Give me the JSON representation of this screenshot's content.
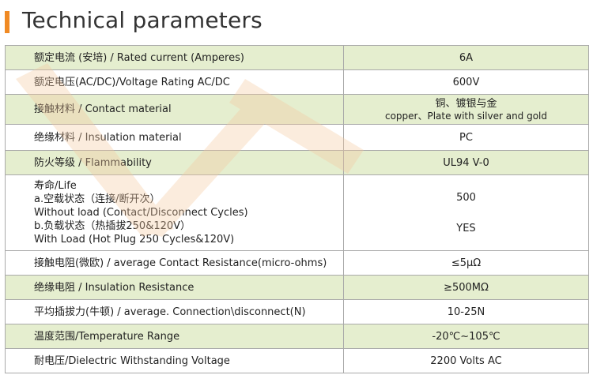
{
  "header": {
    "title": "Technical parameters"
  },
  "rows": [
    {
      "param": "额定电流 (安培) / Rated current (Amperes)",
      "value": "6A"
    },
    {
      "param": "额定电压(AC/DC)/Voltage Rating AC/DC",
      "value": "600V"
    },
    {
      "param": "接触材料 / Contact material",
      "value": "铜、镀银与金",
      "value_sub": "copper、Plate with silver and gold"
    },
    {
      "param": "绝缘材料 / Insulation material",
      "value": "PC"
    },
    {
      "param": "防火等级 / Flammability",
      "value": "UL94 V-0"
    },
    {
      "param_lines": [
        "寿命/Life",
        "a.空载状态（连接/断开次）",
        "Without  load (Contact/Disconnect Cycles)",
        "b.负载状态（热插拔250&120V）",
        "With Load (Hot Plug 250 Cycles&120V)"
      ],
      "value_a": "500",
      "value_b": "YES"
    },
    {
      "param": "接触电阻(微欧) / average Contact Resistance(micro-ohms)",
      "value": "≤5μΩ"
    },
    {
      "param": "绝缘电阻 / Insulation Resistance",
      "value": "≥500MΩ"
    },
    {
      "param": "平均插拔力(牛顿) / average. Connection\\disconnect(N)",
      "value": "10-25N"
    },
    {
      "param": "温度范围/Temperature Range",
      "value": "-20℃~105℃"
    },
    {
      "param": "耐电压/Dielectric Withstanding Voltage",
      "value": "2200 Volts AC"
    }
  ],
  "colors": {
    "accent": "#f08a24",
    "row_shade": "#e5eecf",
    "border": "#a9a9a9"
  }
}
